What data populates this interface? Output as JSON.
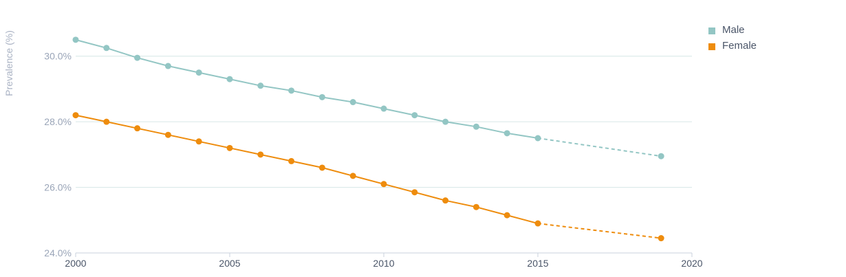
{
  "chart_data": {
    "type": "line",
    "title": "",
    "xlabel": "",
    "ylabel": "Prevalence (%)",
    "xlim": [
      2000,
      2020
    ],
    "ylim": [
      24.0,
      31.0
    ],
    "x_ticks": [
      "2000",
      "2005",
      "2010",
      "2015",
      "2020"
    ],
    "y_ticks": [
      "24.0%",
      "26.0%",
      "28.0%",
      "30.0%"
    ],
    "grid": true,
    "legend_position": "top-right",
    "series": [
      {
        "name": "Male",
        "color": "#93c6c4",
        "x": [
          2000,
          2001,
          2002,
          2003,
          2004,
          2005,
          2006,
          2007,
          2008,
          2009,
          2010,
          2011,
          2012,
          2013,
          2014,
          2015
        ],
        "values": [
          30.5,
          30.25,
          29.95,
          29.7,
          29.5,
          29.3,
          29.1,
          28.95,
          28.75,
          28.6,
          28.4,
          28.2,
          28.0,
          27.85,
          27.65,
          27.5
        ],
        "projection": {
          "x": [
            2015,
            2019
          ],
          "values": [
            27.5,
            26.95
          ]
        }
      },
      {
        "name": "Female",
        "color": "#ee8c0d",
        "x": [
          2000,
          2001,
          2002,
          2003,
          2004,
          2005,
          2006,
          2007,
          2008,
          2009,
          2010,
          2011,
          2012,
          2013,
          2014,
          2015
        ],
        "values": [
          28.2,
          28.0,
          27.8,
          27.6,
          27.4,
          27.2,
          27.0,
          26.8,
          26.6,
          26.35,
          26.1,
          25.85,
          25.6,
          25.4,
          25.15,
          24.9
        ],
        "projection": {
          "x": [
            2015,
            2019
          ],
          "values": [
            24.9,
            24.45
          ]
        }
      }
    ]
  }
}
